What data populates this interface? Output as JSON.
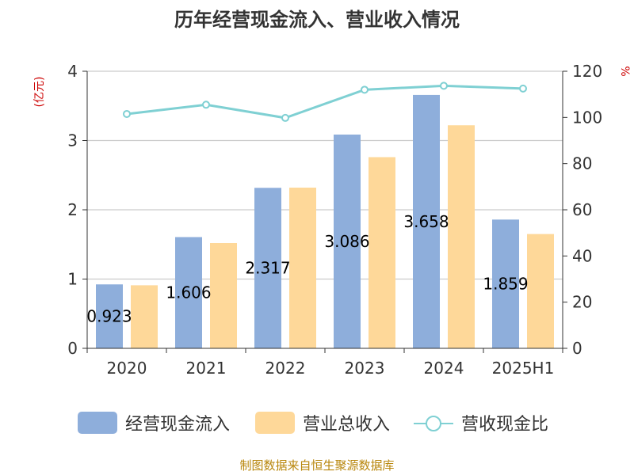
{
  "chart_data": {
    "type": "bar",
    "title": "历年经营现金流入、营业收入情况",
    "categories": [
      "2020",
      "2021",
      "2022",
      "2023",
      "2024",
      "2025H1"
    ],
    "left_axis": {
      "unit": "(亿元)",
      "ylim": [
        0,
        4
      ],
      "ticks": [
        "0",
        "1",
        "2",
        "3",
        "4"
      ]
    },
    "right_axis": {
      "unit": "%",
      "ylim": [
        0,
        120
      ],
      "ticks": [
        "0",
        "20",
        "40",
        "60",
        "80",
        "100",
        "120"
      ]
    },
    "series": [
      {
        "name": "经营现金流入",
        "type": "bar",
        "axis": "left",
        "color": "#8eaedb",
        "values": [
          0.923,
          1.606,
          2.317,
          3.086,
          3.658,
          1.859
        ],
        "labels": [
          "0.923",
          "1.606",
          "2.317",
          "3.086",
          "3.658",
          "1.859"
        ]
      },
      {
        "name": "营业总收入",
        "type": "bar",
        "axis": "left",
        "color": "#fed899",
        "values": [
          0.91,
          1.52,
          2.32,
          2.76,
          3.22,
          1.65
        ]
      },
      {
        "name": "营收现金比",
        "type": "line",
        "axis": "right",
        "color": "#7fd0d3",
        "values": [
          101.5,
          105.5,
          99.8,
          112.0,
          113.7,
          112.5
        ]
      }
    ],
    "grid": true,
    "legend": "bottom",
    "source": "制图数据来自恒生聚源数据库"
  }
}
